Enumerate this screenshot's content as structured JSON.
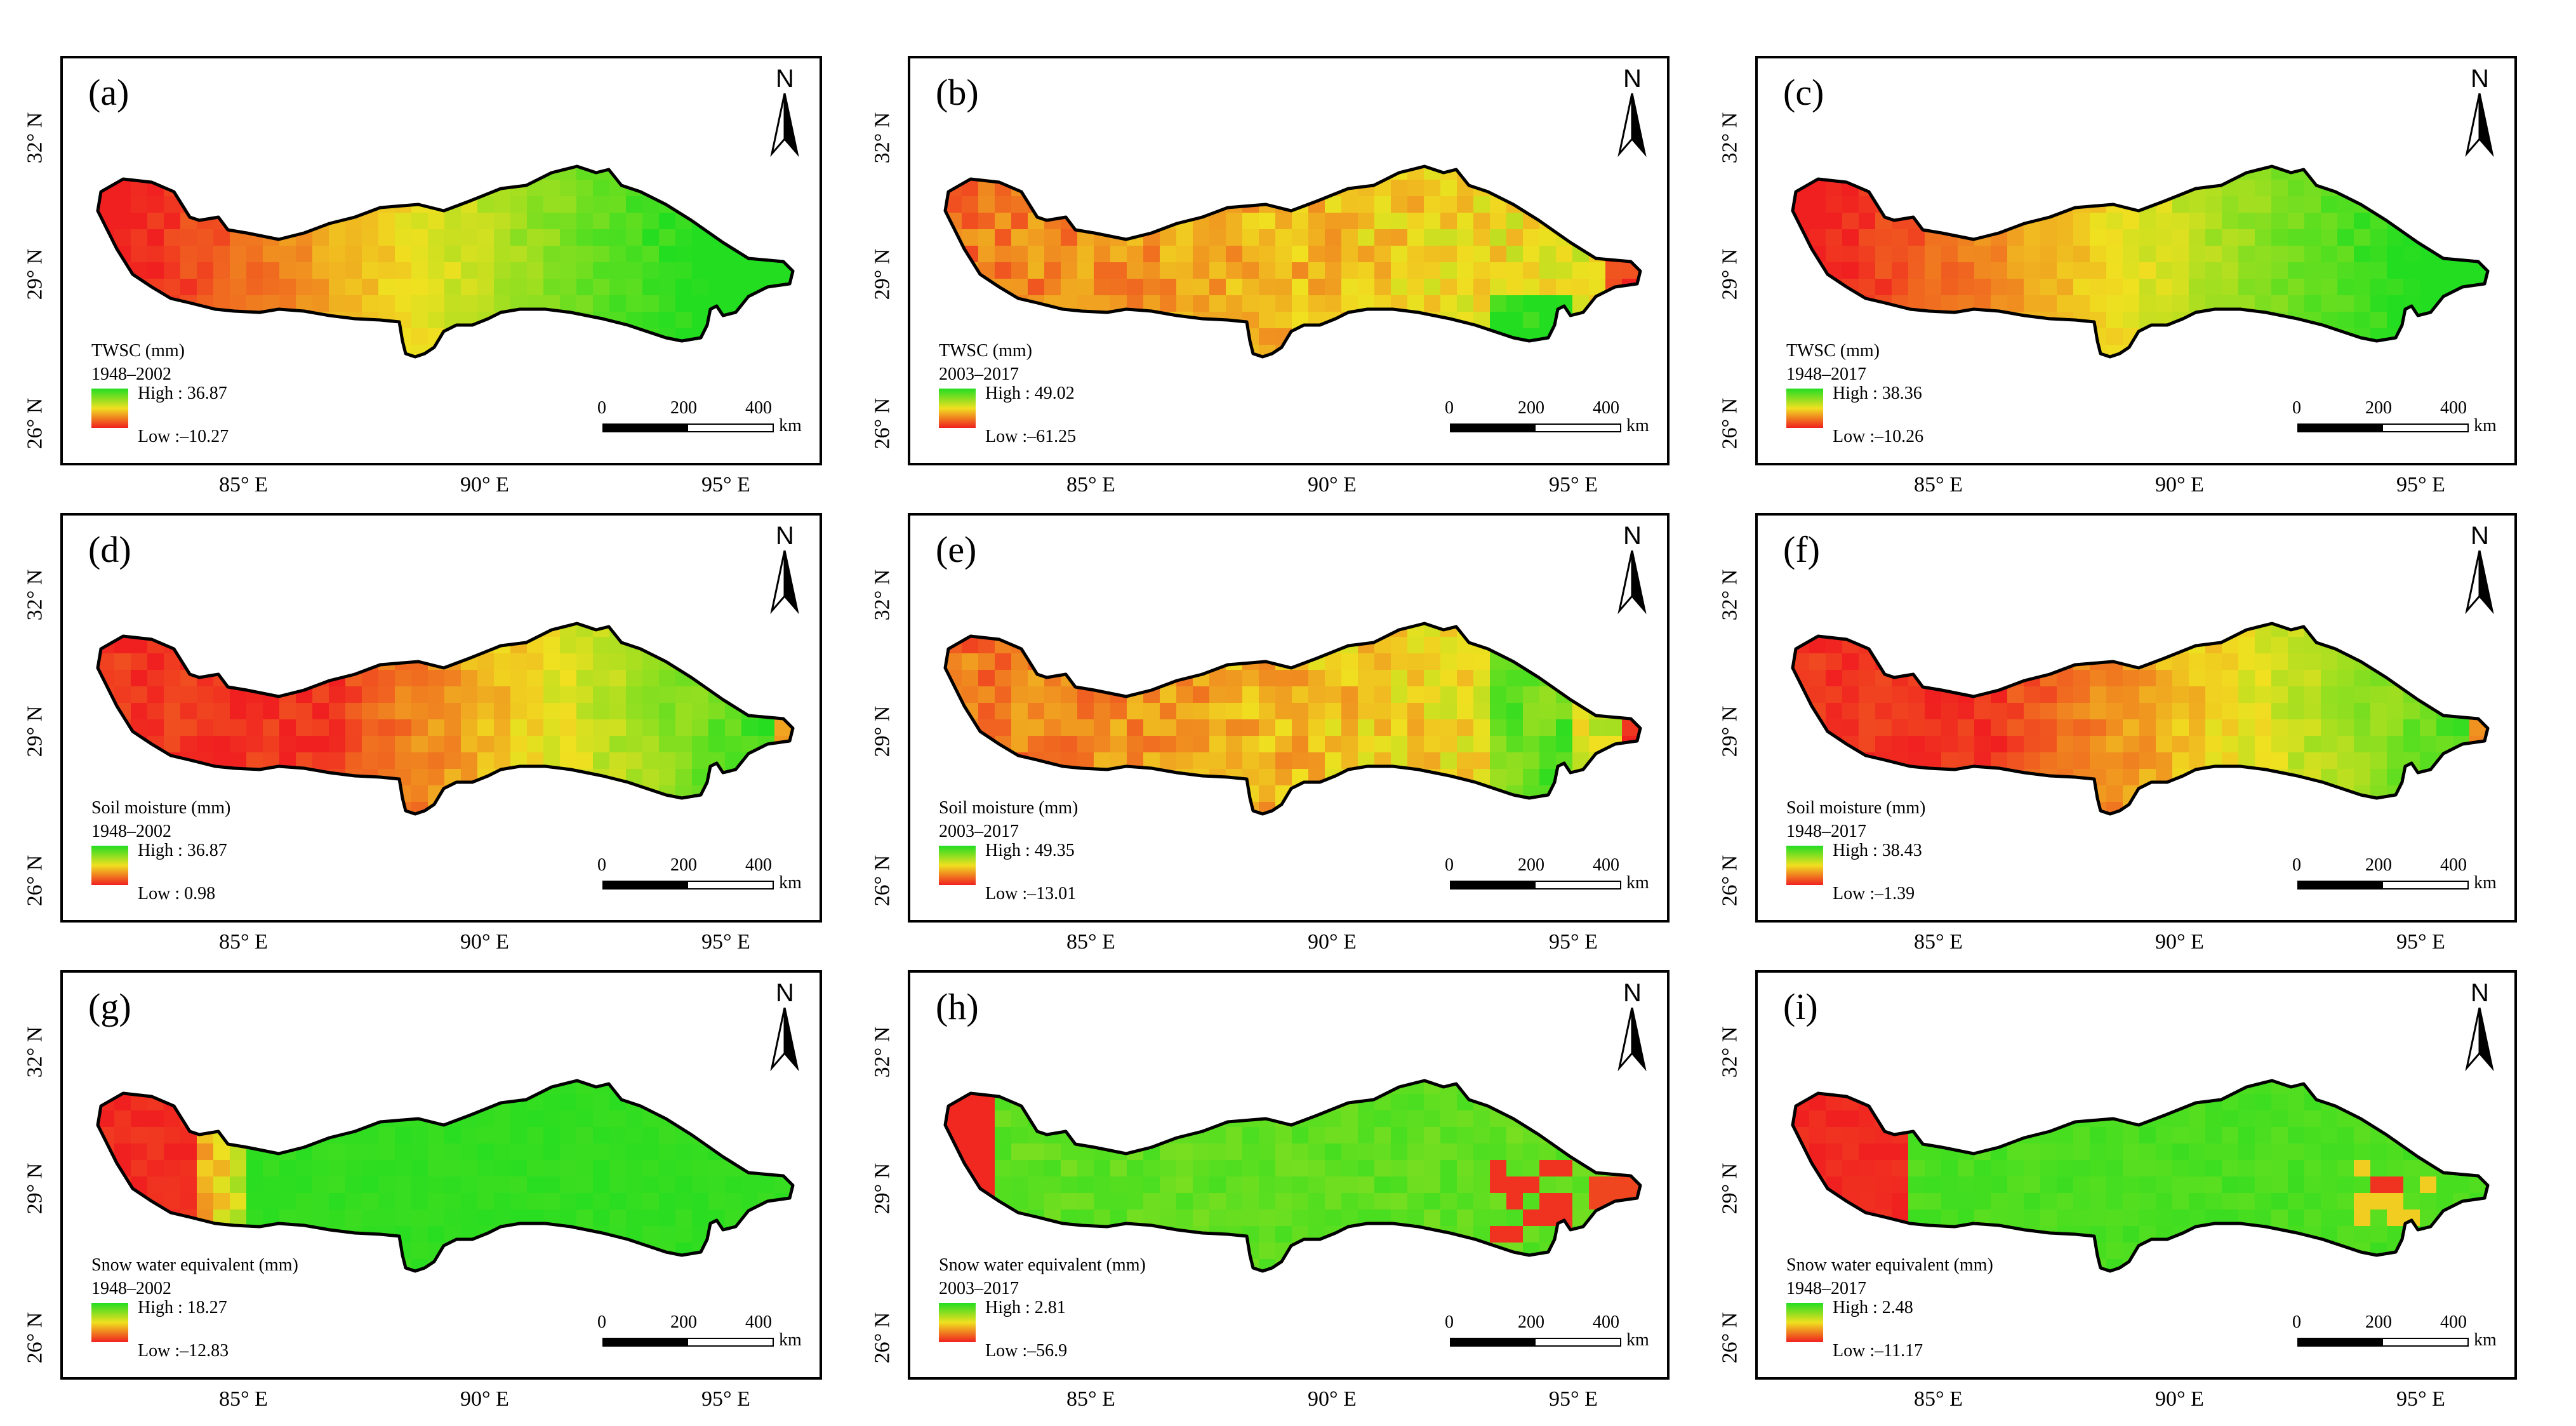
{
  "north_label": "N",
  "lat_labels": [
    "32° N",
    "29° N",
    "26° N"
  ],
  "lon_labels": [
    "85° E",
    "90° E",
    "95° E"
  ],
  "scale": {
    "ticks": [
      "0",
      "200",
      "400"
    ],
    "unit": "km"
  },
  "colors": {
    "high": "#22dd22",
    "mid": "#f0e020",
    "low": "#f02020",
    "outline": "#000000"
  },
  "panels": [
    {
      "letter": "(a)",
      "variable": "TWSC (mm)",
      "period": "1948–2002",
      "high": "High : 36.87",
      "low": "Low :–10.27",
      "pattern": "twsc_a"
    },
    {
      "letter": "(b)",
      "variable": "TWSC (mm)",
      "period": "2003–2017",
      "high": "High : 49.02",
      "low": "Low :–61.25",
      "pattern": "twsc_b"
    },
    {
      "letter": "(c)",
      "variable": "TWSC (mm)",
      "period": "1948–2017",
      "high": "High : 38.36",
      "low": "Low :–10.26",
      "pattern": "twsc_c"
    },
    {
      "letter": "(d)",
      "variable": "Soil moisture (mm)",
      "period": "1948–2002",
      "high": "High : 36.87",
      "low": "Low : 0.98",
      "pattern": "sm_d"
    },
    {
      "letter": "(e)",
      "variable": "Soil moisture (mm)",
      "period": "2003–2017",
      "high": "High : 49.35",
      "low": "Low :–13.01",
      "pattern": "sm_e"
    },
    {
      "letter": "(f)",
      "variable": "Soil moisture (mm)",
      "period": "1948–2017",
      "high": "High : 38.43",
      "low": "Low :–1.39",
      "pattern": "sm_f"
    },
    {
      "letter": "(g)",
      "variable": "Snow water equivalent (mm)",
      "period": "1948–2002",
      "high": "High : 18.27",
      "low": "Low :–12.83",
      "pattern": "swe_g"
    },
    {
      "letter": "(h)",
      "variable": "Snow water equivalent (mm)",
      "period": "2003–2017",
      "high": "High : 2.81",
      "low": "Low :–56.9",
      "pattern": "swe_h"
    },
    {
      "letter": "(i)",
      "variable": "Snow water equivalent (mm)",
      "period": "1948–2017",
      "high": "High : 2.48",
      "low": "Low :–11.17",
      "pattern": "swe_i"
    }
  ]
}
